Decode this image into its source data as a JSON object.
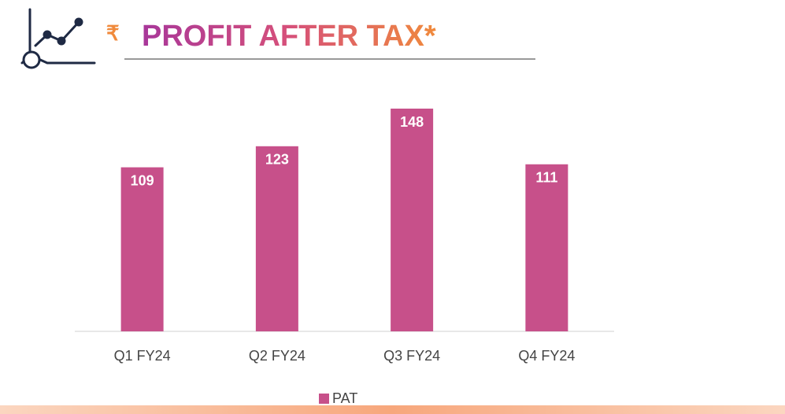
{
  "chart_data": {
    "type": "bar",
    "currency_symbol": "₹",
    "title": "PROFIT AFTER TAX*",
    "categories": [
      "Q1 FY24",
      "Q2 FY24",
      "Q3 FY24",
      "Q4 FY24"
    ],
    "series": [
      {
        "name": "PAT",
        "color": "#c7508a",
        "values": [
          109,
          123,
          148,
          111
        ]
      }
    ],
    "legend": "bottom"
  }
}
